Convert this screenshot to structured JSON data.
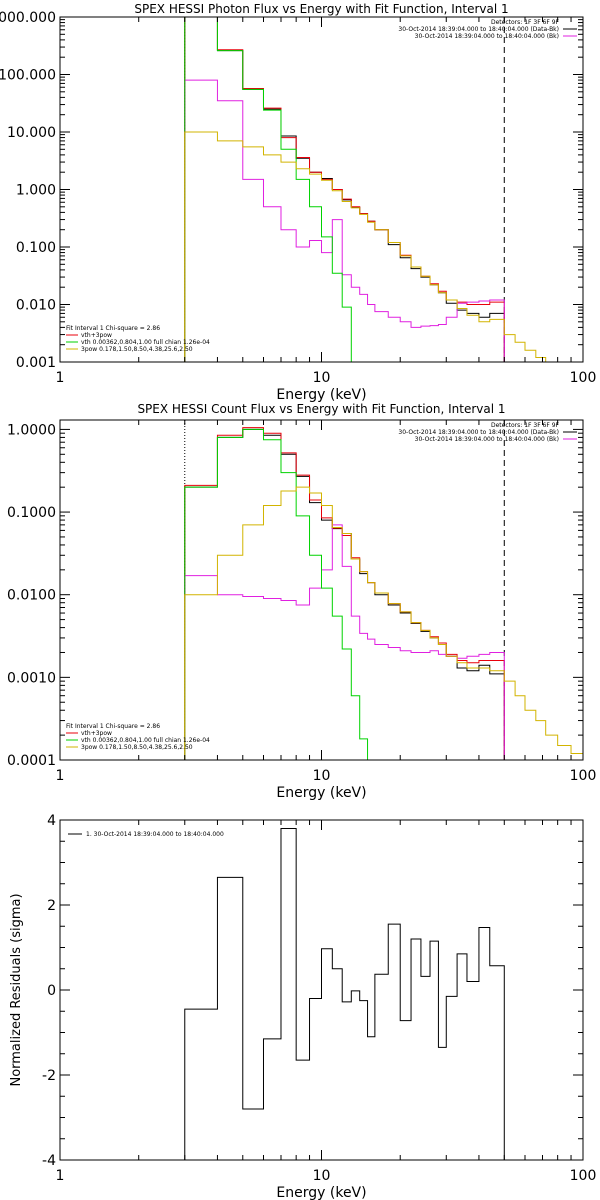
{
  "chart_data": [
    {
      "type": "line",
      "title": "SPEX HESSI Photon Flux vs Energy with Fit Function, Interval 1",
      "xlabel": "Energy (keV)",
      "ylabel": "",
      "x_scale": "log",
      "y_scale": "log",
      "xlim": [
        1,
        100
      ],
      "ylim": [
        0.001,
        1000
      ],
      "x_ticks": [
        {
          "v": 1,
          "label": "1"
        },
        {
          "v": 10,
          "label": "10"
        },
        {
          "v": 100,
          "label": "100"
        }
      ],
      "y_ticks": [
        {
          "v": 0.001,
          "label": "0.001"
        },
        {
          "v": 0.01,
          "label": "0.010"
        },
        {
          "v": 0.1,
          "label": "0.100"
        },
        {
          "v": 1,
          "label": "1.000"
        },
        {
          "v": 10,
          "label": "10.000"
        },
        {
          "v": 100,
          "label": "100.000"
        },
        {
          "v": 1000,
          "label": "1000.000"
        }
      ],
      "vlines": [
        {
          "x": 3,
          "style": "dotted"
        },
        {
          "x": 50,
          "style": "dashed"
        }
      ],
      "legend_top_right": [
        "Detectors: 1F 3F 6F 9F",
        "30-Oct-2014 18:39:04.000 to 18:40:04.000 (Data-Bk)",
        "30-Oct-2014 18:39:04.000 to 18:40:04.000 (Bk)"
      ],
      "legend_bottom_left": [
        "Fit Interval 1    Chi-square = 2.86",
        "vth+3pow",
        "vth 0.00362,0.804,1.00  full chian 1.26e-04",
        "3pow 0.178,1.50,8.50,4.38,25.6,2.50"
      ],
      "series": [
        {
          "name": "30-Oct-2014 18:39:04.000 to 18:40:04.000 (Data-Bk)",
          "color": "#000000",
          "edges": [
            3,
            4,
            5,
            6,
            7,
            8,
            9,
            10,
            11,
            12,
            13,
            14,
            15,
            16,
            18,
            20,
            22,
            24,
            26,
            28,
            30,
            33,
            36,
            40,
            44,
            50
          ],
          "values": [
            1000,
            260,
            55,
            25,
            8.5,
            3.5,
            2.0,
            1.55,
            1.0,
            0.66,
            0.49,
            0.38,
            0.28,
            0.2,
            0.11,
            0.065,
            0.042,
            0.03,
            0.022,
            0.016,
            0.0105,
            0.008,
            0.007,
            0.006,
            0.007
          ]
        },
        {
          "name": "vth+3pow",
          "color": "#e8000b",
          "edges": [
            3,
            4,
            5,
            6,
            7,
            8,
            9,
            10,
            11,
            12,
            13,
            14,
            15,
            16,
            18,
            20,
            22,
            24,
            26,
            28,
            30,
            33,
            36,
            40,
            44,
            50
          ],
          "values": [
            1000,
            270,
            57,
            26,
            8.0,
            3.6,
            2.0,
            1.5,
            1.0,
            0.68,
            0.5,
            0.38,
            0.28,
            0.2,
            0.12,
            0.072,
            0.045,
            0.031,
            0.023,
            0.017,
            0.012,
            0.011,
            0.01,
            0.01,
            0.011
          ]
        },
        {
          "name": "30-Oct-2014 18:39:04.000 to 18:40:04.000 (Bk)",
          "color": "#e020e0",
          "edges": [
            3,
            4,
            5,
            6,
            7,
            8,
            9,
            10,
            11,
            12,
            13,
            14,
            15,
            16,
            18,
            20,
            22,
            24,
            26,
            28,
            30,
            33,
            36,
            40,
            44,
            50
          ],
          "values": [
            80,
            35,
            1.5,
            0.5,
            0.2,
            0.1,
            0.13,
            0.08,
            0.3,
            0.033,
            0.02,
            0.015,
            0.01,
            0.0075,
            0.006,
            0.005,
            0.004,
            0.0042,
            0.0043,
            0.0045,
            0.006,
            0.0105,
            0.011,
            0.0115,
            0.012
          ]
        },
        {
          "name": "vth",
          "color": "#00d200",
          "edges": [
            3,
            4,
            5,
            6,
            7,
            8,
            9,
            10,
            11,
            12,
            13,
            14
          ],
          "values": [
            1000,
            260,
            55,
            24,
            5.0,
            1.5,
            0.5,
            0.15,
            0.035,
            0.009,
            0.001
          ]
        },
        {
          "name": "3pow",
          "color": "#d2b400",
          "edges": [
            3,
            4,
            5,
            6,
            7,
            8,
            9,
            10,
            11,
            12,
            13,
            14,
            15,
            16,
            18,
            20,
            22,
            24,
            26,
            28,
            30,
            33,
            36,
            40,
            44,
            50,
            55,
            60,
            66,
            72,
            80,
            90
          ],
          "values": [
            10,
            7,
            5.5,
            4.0,
            3.0,
            2.3,
            1.85,
            1.45,
            0.95,
            0.62,
            0.48,
            0.37,
            0.27,
            0.2,
            0.12,
            0.07,
            0.045,
            0.031,
            0.022,
            0.016,
            0.012,
            0.0085,
            0.0065,
            0.005,
            0.0055,
            0.003,
            0.0022,
            0.0016,
            0.0012,
            0.001,
            0.0008
          ]
        }
      ]
    },
    {
      "type": "line",
      "title": "SPEX HESSI Count Flux vs Energy with Fit Function, Interval 1",
      "xlabel": "Energy (keV)",
      "ylabel": "",
      "x_scale": "log",
      "y_scale": "log",
      "xlim": [
        1,
        100
      ],
      "ylim": [
        0.0001,
        1.3
      ],
      "x_ticks": [
        {
          "v": 1,
          "label": "1"
        },
        {
          "v": 10,
          "label": "10"
        },
        {
          "v": 100,
          "label": "100"
        }
      ],
      "y_ticks": [
        {
          "v": 0.0001,
          "label": "0.0001"
        },
        {
          "v": 0.001,
          "label": "0.0010"
        },
        {
          "v": 0.01,
          "label": "0.0100"
        },
        {
          "v": 0.1,
          "label": "0.1000"
        },
        {
          "v": 1,
          "label": "1.0000"
        }
      ],
      "vlines": [
        {
          "x": 3,
          "style": "dotted"
        },
        {
          "x": 50,
          "style": "dashed"
        }
      ],
      "legend_top_right": [
        "Detectors: 1F 3F 6F 9F",
        "30-Oct-2014 18:39:04.000 to 18:40:04.000 (Data-Bk)",
        "30-Oct-2014 18:39:04.000 to 18:40:04.000 (Bk)"
      ],
      "legend_bottom_left": [
        "Fit Interval 1    Chi-square = 2.86",
        "vth+3pow",
        "vth 0.00362,0.804,1.00  full chian 1.26e-04",
        "3pow 0.178,1.50,8.50,4.38,25.6,2.50"
      ],
      "series": [
        {
          "name": "30-Oct-2014 18:39:04.000 to 18:40:04.000 (Data-Bk)",
          "color": "#000000",
          "edges": [
            3,
            4,
            5,
            6,
            7,
            8,
            9,
            10,
            11,
            12,
            13,
            14,
            15,
            16,
            18,
            20,
            22,
            24,
            26,
            28,
            30,
            33,
            36,
            40,
            44,
            50
          ],
          "values": [
            0.2,
            0.8,
            1.0,
            0.85,
            0.5,
            0.27,
            0.13,
            0.08,
            0.063,
            0.055,
            0.027,
            0.018,
            0.014,
            0.01,
            0.0075,
            0.006,
            0.0045,
            0.0036,
            0.003,
            0.0025,
            0.0018,
            0.0013,
            0.0012,
            0.0014,
            0.0011
          ]
        },
        {
          "name": "vth+3pow",
          "color": "#e8000b",
          "edges": [
            3,
            4,
            5,
            6,
            7,
            8,
            9,
            10,
            11,
            12,
            13,
            14,
            15,
            16,
            18,
            20,
            22,
            24,
            26,
            28,
            30,
            33,
            36,
            40,
            44,
            50
          ],
          "values": [
            0.21,
            0.85,
            1.05,
            0.9,
            0.52,
            0.28,
            0.14,
            0.085,
            0.064,
            0.052,
            0.028,
            0.019,
            0.014,
            0.0105,
            0.0078,
            0.0062,
            0.0046,
            0.0037,
            0.0031,
            0.0026,
            0.0019,
            0.0016,
            0.0015,
            0.0016,
            0.0016
          ]
        },
        {
          "name": "30-Oct-2014 18:39:04.000 to 18:40:04.000 (Bk)",
          "color": "#e020e0",
          "edges": [
            3,
            4,
            5,
            6,
            7,
            8,
            9,
            10,
            11,
            12,
            13,
            14,
            15,
            16,
            18,
            20,
            22,
            24,
            26,
            28,
            30,
            33,
            36,
            40,
            44,
            50
          ],
          "values": [
            0.017,
            0.01,
            0.0095,
            0.009,
            0.0085,
            0.0075,
            0.012,
            0.02,
            0.07,
            0.022,
            0.0055,
            0.0034,
            0.0029,
            0.0025,
            0.0023,
            0.0021,
            0.002,
            0.002,
            0.0021,
            0.0019,
            0.0018,
            0.0017,
            0.0018,
            0.0019,
            0.002
          ]
        },
        {
          "name": "vth",
          "color": "#00d200",
          "edges": [
            3,
            4,
            5,
            6,
            7,
            8,
            9,
            10,
            11,
            12,
            13,
            14,
            15
          ],
          "values": [
            0.2,
            0.8,
            1.0,
            0.75,
            0.3,
            0.09,
            0.03,
            0.012,
            0.0055,
            0.0022,
            0.0006,
            0.00018
          ]
        },
        {
          "name": "3pow",
          "color": "#d2b400",
          "edges": [
            3,
            4,
            5,
            6,
            7,
            8,
            9,
            10,
            11,
            12,
            13,
            14,
            15,
            16,
            18,
            20,
            22,
            24,
            26,
            28,
            30,
            33,
            36,
            40,
            44,
            50,
            55,
            60,
            66,
            72,
            80,
            90,
            100
          ],
          "values": [
            0.01,
            0.03,
            0.07,
            0.12,
            0.18,
            0.2,
            0.17,
            0.12,
            0.065,
            0.055,
            0.027,
            0.019,
            0.014,
            0.0105,
            0.0078,
            0.0062,
            0.0046,
            0.0037,
            0.003,
            0.0025,
            0.0018,
            0.0015,
            0.0013,
            0.0013,
            0.0012,
            0.0009,
            0.0006,
            0.0004,
            0.0003,
            0.0002,
            0.00015,
            0.00012
          ]
        }
      ]
    },
    {
      "type": "line",
      "title": "",
      "xlabel": "Energy (keV)",
      "ylabel": "Normalized Residuals (sigma)",
      "x_scale": "log",
      "y_scale": "linear",
      "xlim": [
        1,
        100
      ],
      "ylim": [
        -4,
        4
      ],
      "x_ticks": [
        {
          "v": 1,
          "label": "1"
        },
        {
          "v": 10,
          "label": "10"
        },
        {
          "v": 100,
          "label": "100"
        }
      ],
      "y_ticks": [
        {
          "v": -4,
          "label": "-4"
        },
        {
          "v": -2,
          "label": "-2"
        },
        {
          "v": 0,
          "label": "0"
        },
        {
          "v": 2,
          "label": "2"
        },
        {
          "v": 4,
          "label": "4"
        }
      ],
      "legend_top_left": [
        "1. 30-Oct-2014 18:39:04.000 to 18:40:04.000"
      ],
      "series": [
        {
          "name": "1. 30-Oct-2014 18:39:04.000 to 18:40:04.000",
          "color": "#000000",
          "edges": [
            3,
            4,
            5,
            6,
            7,
            8,
            9,
            10,
            11,
            12,
            13,
            14,
            15,
            16,
            18,
            20,
            22,
            24,
            26,
            28,
            30,
            33,
            36,
            40,
            44,
            50
          ],
          "values": [
            -0.45,
            2.65,
            -2.8,
            -1.15,
            3.8,
            -1.65,
            -0.2,
            0.97,
            0.5,
            -0.28,
            -0.02,
            -0.25,
            -1.1,
            0.37,
            1.55,
            -0.72,
            1.2,
            0.32,
            1.15,
            -1.35,
            -0.15,
            0.85,
            0.2,
            1.47,
            0.57
          ]
        }
      ]
    }
  ]
}
